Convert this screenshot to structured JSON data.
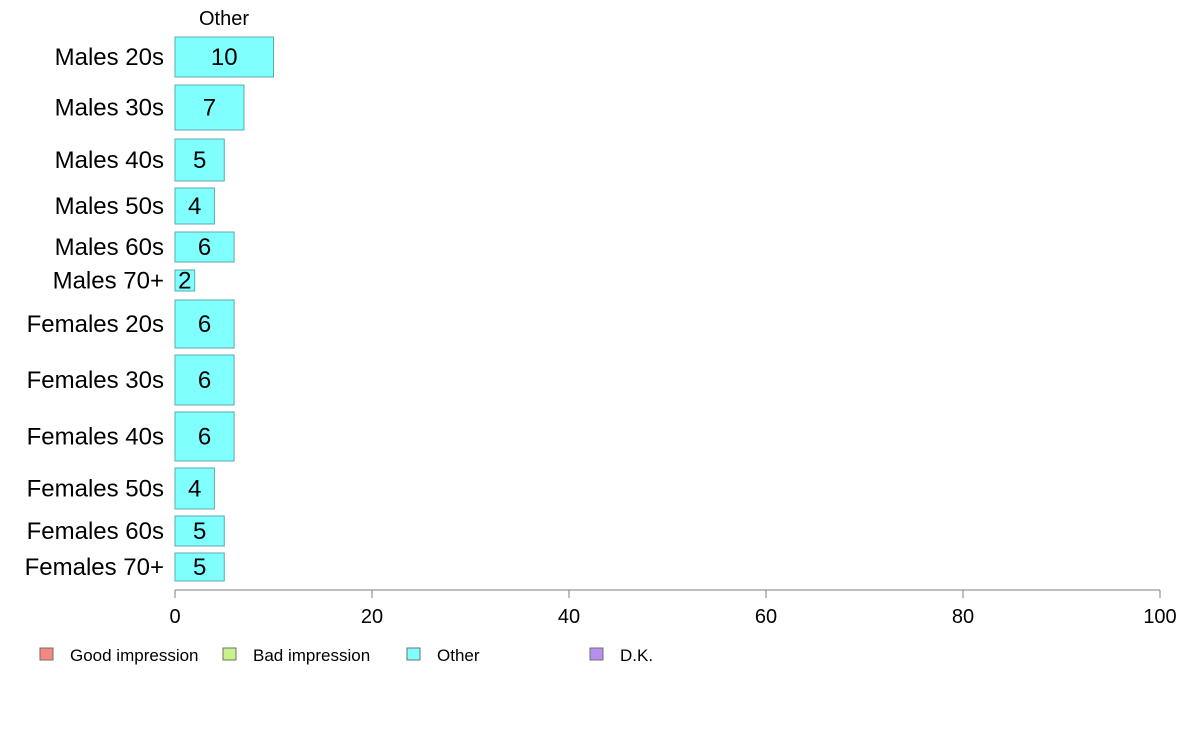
{
  "chart_data": {
    "type": "bar",
    "orientation": "horizontal",
    "stacked": true,
    "panel_title": "Other",
    "categories": [
      "Males 20s",
      "Males 30s",
      "Males 40s",
      "Males 50s",
      "Males 60s",
      "Males 70+",
      "Females 20s",
      "Females 30s",
      "Females 40s",
      "Females 50s",
      "Females 60s",
      "Females 70+"
    ],
    "series": [
      {
        "name": "Other",
        "values": [
          10,
          7,
          5,
          4,
          6,
          2,
          6,
          6,
          6,
          4,
          5,
          5
        ],
        "labels": [
          "10",
          "7",
          "5",
          "4",
          "6",
          "2",
          "6",
          "6",
          "6",
          "4",
          "5",
          "5"
        ]
      }
    ],
    "xlim": [
      0,
      100
    ],
    "x_ticks": [
      0,
      20,
      40,
      60,
      80,
      100
    ],
    "x_tick_labels": [
      "0",
      "20",
      "40",
      "60",
      "80",
      "100"
    ],
    "grid": false,
    "legend": {
      "position": "bottom-left",
      "items": [
        {
          "label": "Good impression",
          "color": "#f8877f"
        },
        {
          "label": "Bad impression",
          "color": "#c8f38a"
        },
        {
          "label": "Other",
          "color": "#80ffff"
        },
        {
          "label": "D.K.",
          "color": "#b88ff0"
        }
      ]
    },
    "colors": {
      "bar_fill": "#80ffff",
      "bar_stroke": "#5fa9ad",
      "axis": "#7f7f7f"
    }
  }
}
